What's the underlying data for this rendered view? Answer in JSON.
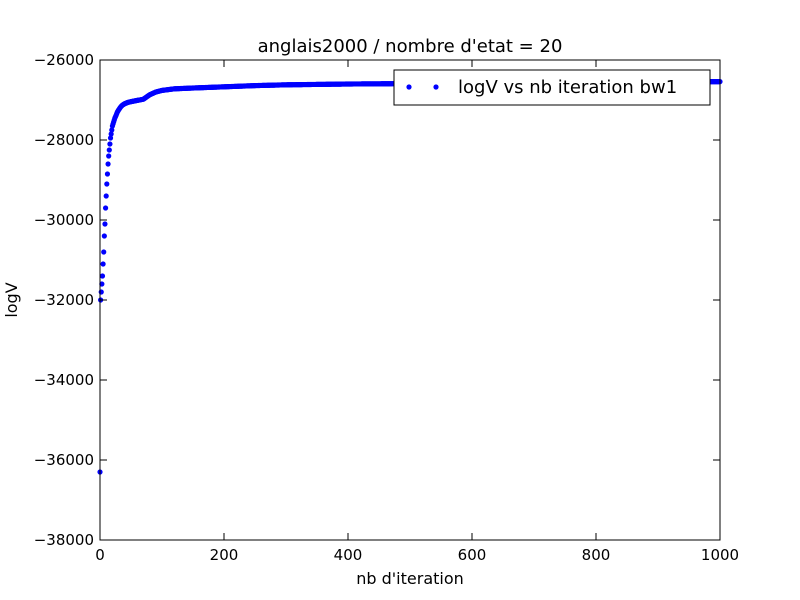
{
  "chart_data": {
    "type": "scatter",
    "title": "anglais2000 / nombre d'etat = 20",
    "xlabel": "nb d'iteration",
    "ylabel": "logV",
    "xlim": [
      0,
      1000
    ],
    "ylim": [
      -38000,
      -26000
    ],
    "xticks": [
      0,
      200,
      400,
      600,
      800,
      1000
    ],
    "xtick_labels": [
      "0",
      "200",
      "400",
      "600",
      "800",
      "1000"
    ],
    "yticks": [
      -38000,
      -36000,
      -34000,
      -32000,
      -30000,
      -28000,
      -26000
    ],
    "ytick_labels": [
      "−38000",
      "−36000",
      "−34000",
      "−32000",
      "−30000",
      "−28000",
      "−26000"
    ],
    "grid": false,
    "legend_position": "top-right",
    "series": [
      {
        "name": "logV vs nb iteration bw1",
        "color": "#0000ff",
        "marker": "dot",
        "x": [
          0,
          1,
          2,
          3,
          4,
          5,
          6,
          7,
          8,
          9,
          10,
          11,
          12,
          13,
          14,
          15,
          16,
          17,
          18,
          19,
          20,
          22,
          24,
          26,
          28,
          30,
          33,
          36,
          40,
          45,
          50,
          60,
          70,
          80,
          90,
          100,
          120,
          150,
          200,
          250,
          300,
          400,
          500,
          600,
          700,
          800,
          900,
          1000
        ],
        "y": [
          -36300,
          -32000,
          -31800,
          -31600,
          -31400,
          -31100,
          -30800,
          -30400,
          -30100,
          -29700,
          -29400,
          -29100,
          -28850,
          -28600,
          -28400,
          -28250,
          -28100,
          -27950,
          -27850,
          -27750,
          -27650,
          -27550,
          -27450,
          -27380,
          -27300,
          -27250,
          -27180,
          -27130,
          -27090,
          -27060,
          -27040,
          -27010,
          -26980,
          -26870,
          -26800,
          -26760,
          -26720,
          -26700,
          -26670,
          -26640,
          -26620,
          -26600,
          -26590,
          -26580,
          -26570,
          -26560,
          -26550,
          -26540
        ]
      }
    ]
  }
}
